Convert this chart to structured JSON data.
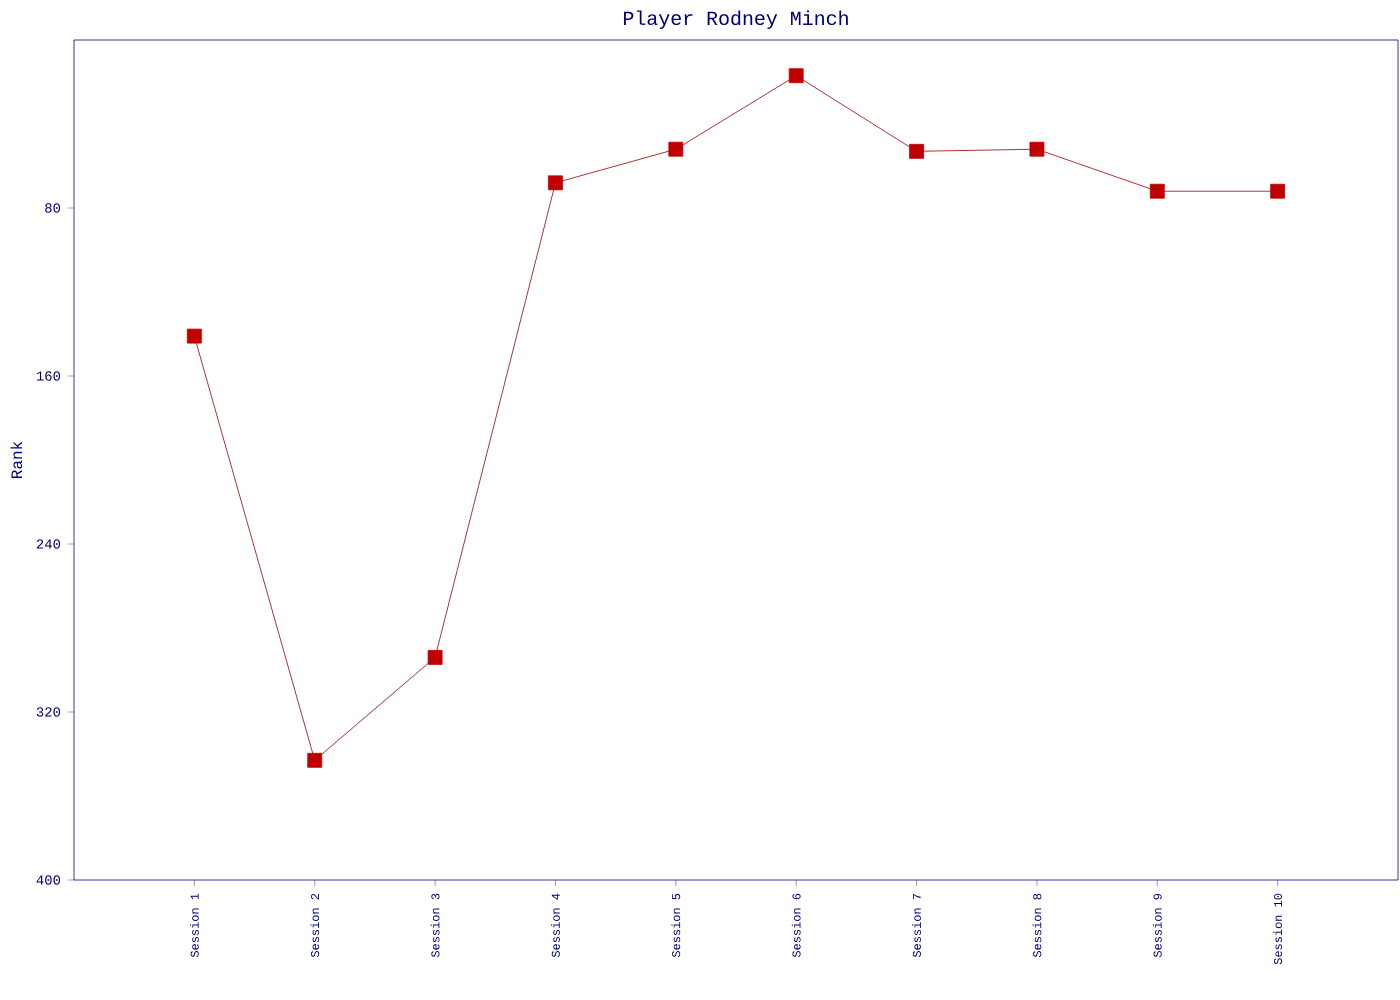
{
  "chart_data": {
    "type": "line",
    "title": "Player Rodney Minch",
    "ylabel": "Rank",
    "categories": [
      "Session 1",
      "Session 2",
      "Session 3",
      "Session 4",
      "Session 5",
      "Session 6",
      "Session 7",
      "Session 8",
      "Session 9",
      "Session 10"
    ],
    "series": [
      {
        "color": "#c00000",
        "values": [
          141,
          343,
          294,
          68,
          52,
          17,
          53,
          52,
          72,
          72
        ]
      }
    ],
    "ylim": [
      400,
      0
    ],
    "yticks": [
      80,
      160,
      240,
      320,
      400
    ],
    "marker": "square",
    "line_style": "solid",
    "grid": false
  }
}
